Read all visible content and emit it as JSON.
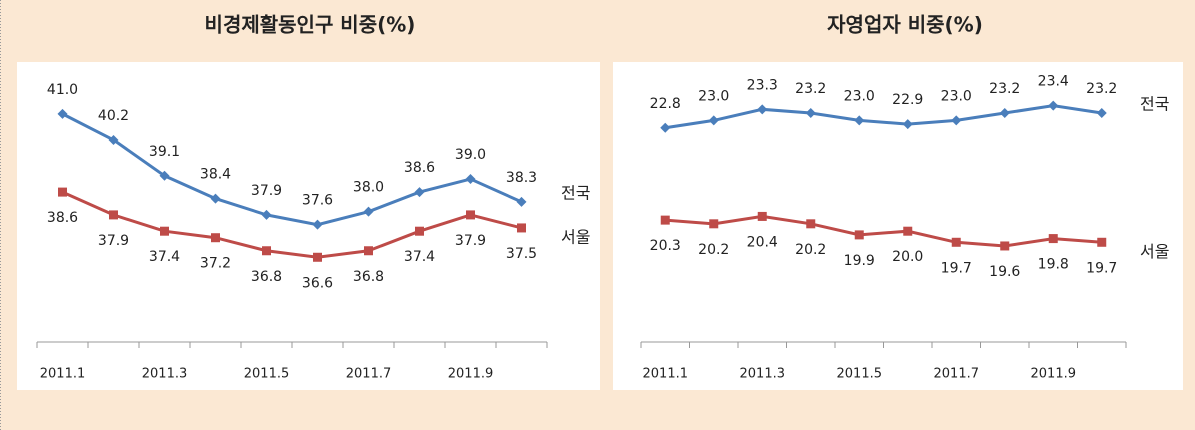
{
  "chart_data": [
    {
      "type": "line",
      "title": "비경제활동인구 비중(%)",
      "categories": [
        "2011.1",
        null,
        "2011.3",
        null,
        "2011.5",
        null,
        "2011.7",
        null,
        "2011.9",
        null
      ],
      "series": [
        {
          "name": "전국",
          "color": "#4a7ebb",
          "values": [
            41.0,
            40.2,
            39.1,
            38.4,
            37.9,
            37.6,
            38.0,
            38.6,
            39.0,
            38.3
          ],
          "value_labels": [
            "41.0",
            "40.2",
            "39.1",
            "38.4",
            "37.9",
            "37.6",
            "38.0",
            "38.6",
            "39.0",
            "38.3"
          ]
        },
        {
          "name": "서울",
          "color": "#be4b48",
          "values": [
            38.6,
            37.9,
            37.4,
            37.2,
            36.8,
            36.6,
            36.8,
            37.4,
            37.9,
            37.5
          ],
          "value_labels": [
            "38.6",
            "37.9",
            "37.4",
            "37.2",
            "36.8",
            "36.6",
            "36.8",
            "37.4",
            "37.9",
            "37.5"
          ]
        }
      ],
      "ylim": [
        34,
        42.5
      ]
    },
    {
      "type": "line",
      "title": "자영업자 비중(%)",
      "categories": [
        "2011.1",
        null,
        "2011.3",
        null,
        "2011.5",
        null,
        "2011.7",
        null,
        "2011.9",
        null
      ],
      "series": [
        {
          "name": "전국",
          "color": "#4a7ebb",
          "values": [
            22.8,
            23.0,
            23.3,
            23.2,
            23.0,
            22.9,
            23.0,
            23.2,
            23.4,
            23.2
          ],
          "value_labels": [
            "22.8",
            "23.0",
            "23.3",
            "23.2",
            "23.0",
            "22.9",
            "23.0",
            "23.2",
            "23.4",
            "23.2"
          ]
        },
        {
          "name": "서울",
          "color": "#be4b48",
          "values": [
            20.3,
            20.2,
            20.4,
            20.2,
            19.9,
            20.0,
            19.7,
            19.6,
            19.8,
            19.7
          ],
          "value_labels": [
            "20.3",
            "20.2",
            "20.4",
            "20.2",
            "19.9",
            "20.0",
            "19.7",
            "19.6",
            "19.8",
            "19.7"
          ]
        }
      ],
      "ylim": [
        17,
        24.5
      ]
    }
  ]
}
